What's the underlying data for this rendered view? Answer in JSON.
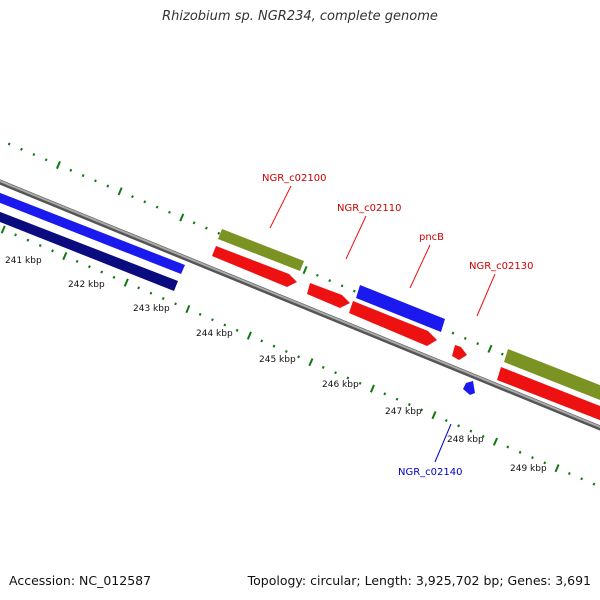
{
  "title": "Rhizobium sp. NGR234, complete genome",
  "footer": {
    "accession": "Accession: NC_012587",
    "summary": "Topology: circular; Length: 3,925,702 bp; Genes: 3,691"
  },
  "colors": {
    "backbone": "#8a8a8a",
    "tick": "#117711",
    "forward_gene": "#1a1aee",
    "forward_gene_dark": "#0b0b80",
    "cds": "#ee1111",
    "olive_gene": "#7a9322",
    "label_red": "#cc0000",
    "label_blue": "#0000cc"
  },
  "scale_labels": [
    "241 kbp",
    "242 kbp",
    "243 kbp",
    "244 kbp",
    "245 kbp",
    "246 kbp",
    "247 kbp",
    "248 kbp",
    "249 kbp"
  ],
  "gene_labels": [
    {
      "text": "NGR_c02100",
      "color": "red"
    },
    {
      "text": "NGR_c02110",
      "color": "red"
    },
    {
      "text": "pncB",
      "color": "red"
    },
    {
      "text": "NGR_c02130",
      "color": "red"
    },
    {
      "text": "NGR_c02140",
      "color": "blue"
    }
  ]
}
